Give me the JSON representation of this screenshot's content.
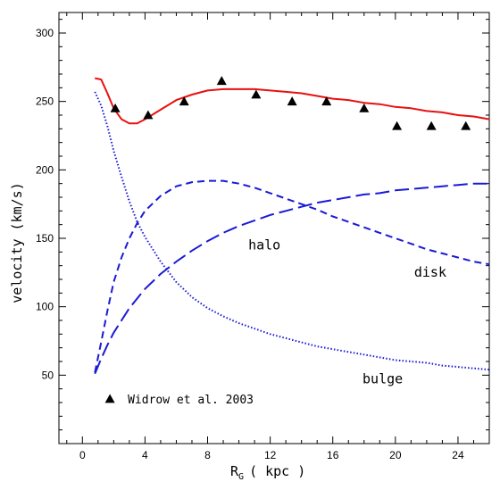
{
  "chart_data": {
    "type": "line",
    "title": "",
    "xlabel": "R",
    "xlabel_sub": "G",
    "xlabel_unit": "( kpc )",
    "ylabel": "velocity (km/s)",
    "xlim": [
      -1.5,
      26
    ],
    "ylim": [
      0,
      315
    ],
    "x_ticks": [
      0,
      4,
      8,
      12,
      16,
      20,
      24
    ],
    "y_ticks": [
      50,
      100,
      150,
      200,
      250,
      300
    ],
    "grid": false,
    "series": [
      {
        "name": "",
        "style": "solid",
        "color": "#e81010",
        "x": [
          0.8,
          1.2,
          1.6,
          2.0,
          2.5,
          3.0,
          3.5,
          4.0,
          5.0,
          6.0,
          7.0,
          8.0,
          9.0,
          10.0,
          11.0,
          12.0,
          13.0,
          14.0,
          15.0,
          16.0,
          17.0,
          18.0,
          19.0,
          20.0,
          21.0,
          22.0,
          23.0,
          24.0,
          25.0,
          26.0
        ],
        "y": [
          267,
          266,
          256,
          245,
          237,
          234,
          234,
          237,
          244,
          251,
          255,
          258,
          259,
          259,
          259,
          258,
          257,
          256,
          254,
          252,
          251,
          249,
          248,
          246,
          245,
          243,
          242,
          240,
          239,
          237
        ]
      },
      {
        "name": "halo",
        "style": "long-dash",
        "color": "#1a1ad6",
        "x": [
          0.8,
          1.2,
          1.6,
          2.0,
          2.5,
          3.0,
          3.5,
          4.0,
          5.0,
          6.0,
          7.0,
          8.0,
          9.0,
          10.0,
          11.0,
          12.0,
          13.0,
          14.0,
          15.0,
          16.0,
          17.0,
          18.0,
          19.0,
          20.0,
          21.0,
          22.0,
          23.0,
          24.0,
          25.0,
          26.0
        ],
        "y": [
          51,
          62,
          72,
          81,
          90,
          99,
          106,
          113,
          124,
          133,
          141,
          148,
          154,
          159,
          163,
          167,
          170,
          173,
          176,
          178,
          180,
          182,
          183,
          185,
          186,
          187,
          188,
          189,
          190,
          190
        ]
      },
      {
        "name": "disk",
        "style": "short-dash",
        "color": "#1a1ad6",
        "x": [
          0.8,
          1.2,
          1.6,
          2.0,
          2.5,
          3.0,
          3.5,
          4.0,
          5.0,
          6.0,
          7.0,
          8.0,
          9.0,
          10.0,
          11.0,
          12.0,
          13.0,
          14.0,
          15.0,
          16.0,
          17.0,
          18.0,
          19.0,
          20.0,
          21.0,
          22.0,
          23.0,
          24.0,
          25.0,
          26.0
        ],
        "y": [
          52,
          74,
          97,
          118,
          136,
          150,
          161,
          170,
          181,
          188,
          191,
          192,
          192,
          190,
          187,
          183,
          179,
          175,
          171,
          166,
          162,
          158,
          154,
          150,
          146,
          142,
          139,
          136,
          133,
          131
        ]
      },
      {
        "name": "bulge",
        "style": "dotted",
        "color": "#1a1ad6",
        "x": [
          0.8,
          1.2,
          1.6,
          2.0,
          2.5,
          3.0,
          3.5,
          4.0,
          5.0,
          6.0,
          7.0,
          8.0,
          9.0,
          10.0,
          11.0,
          12.0,
          13.0,
          14.0,
          15.0,
          16.0,
          17.0,
          18.0,
          19.0,
          20.0,
          21.0,
          22.0,
          23.0,
          24.0,
          25.0,
          26.0
        ],
        "y": [
          257,
          247,
          232,
          214,
          195,
          177,
          162,
          151,
          133,
          118,
          107,
          99,
          93,
          88,
          84,
          80,
          77,
          74,
          71,
          69,
          67,
          65,
          63,
          61,
          60,
          59,
          57,
          56,
          55,
          54
        ]
      }
    ],
    "points": {
      "name": "Widrow et al. 2003",
      "marker": "triangle",
      "color": "#000000",
      "x": [
        2.1,
        4.2,
        6.5,
        8.9,
        11.1,
        13.4,
        15.6,
        18.0,
        20.1,
        22.3,
        24.5
      ],
      "y": [
        245,
        240,
        250,
        265,
        255,
        250,
        250,
        245,
        232,
        232,
        232
      ]
    },
    "annotations": [
      {
        "text": "halo",
        "x": 10.6,
        "y": 142
      },
      {
        "text": "disk",
        "x": 21.2,
        "y": 122
      },
      {
        "text": "bulge",
        "x": 17.9,
        "y": 44
      }
    ],
    "legend": {
      "text": "Widrow et al. 2003",
      "placement": "bottom-left"
    }
  }
}
